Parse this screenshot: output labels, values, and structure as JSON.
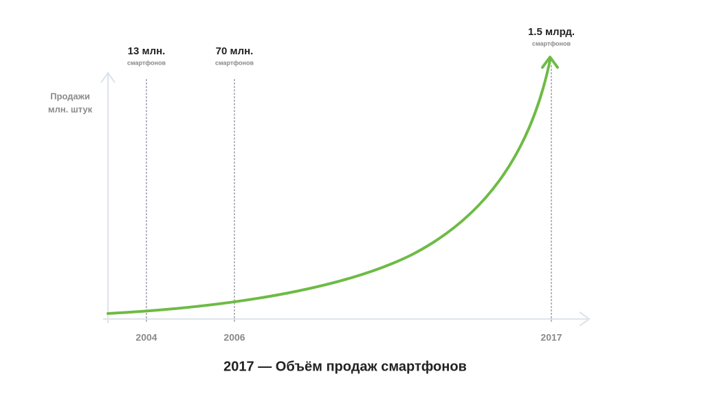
{
  "y_axis_label": [
    "Продажи",
    "млн. штук"
  ],
  "markers": [
    {
      "year": "2004",
      "value": "13 млн.",
      "unit": "смартфонов"
    },
    {
      "year": "2006",
      "value": "70 млн.",
      "unit": "смартфонов"
    },
    {
      "year": "2017",
      "value": "1.5 млрд.",
      "unit": "смартфонов"
    }
  ],
  "title": "2017 — Объём продаж смартфонов"
}
